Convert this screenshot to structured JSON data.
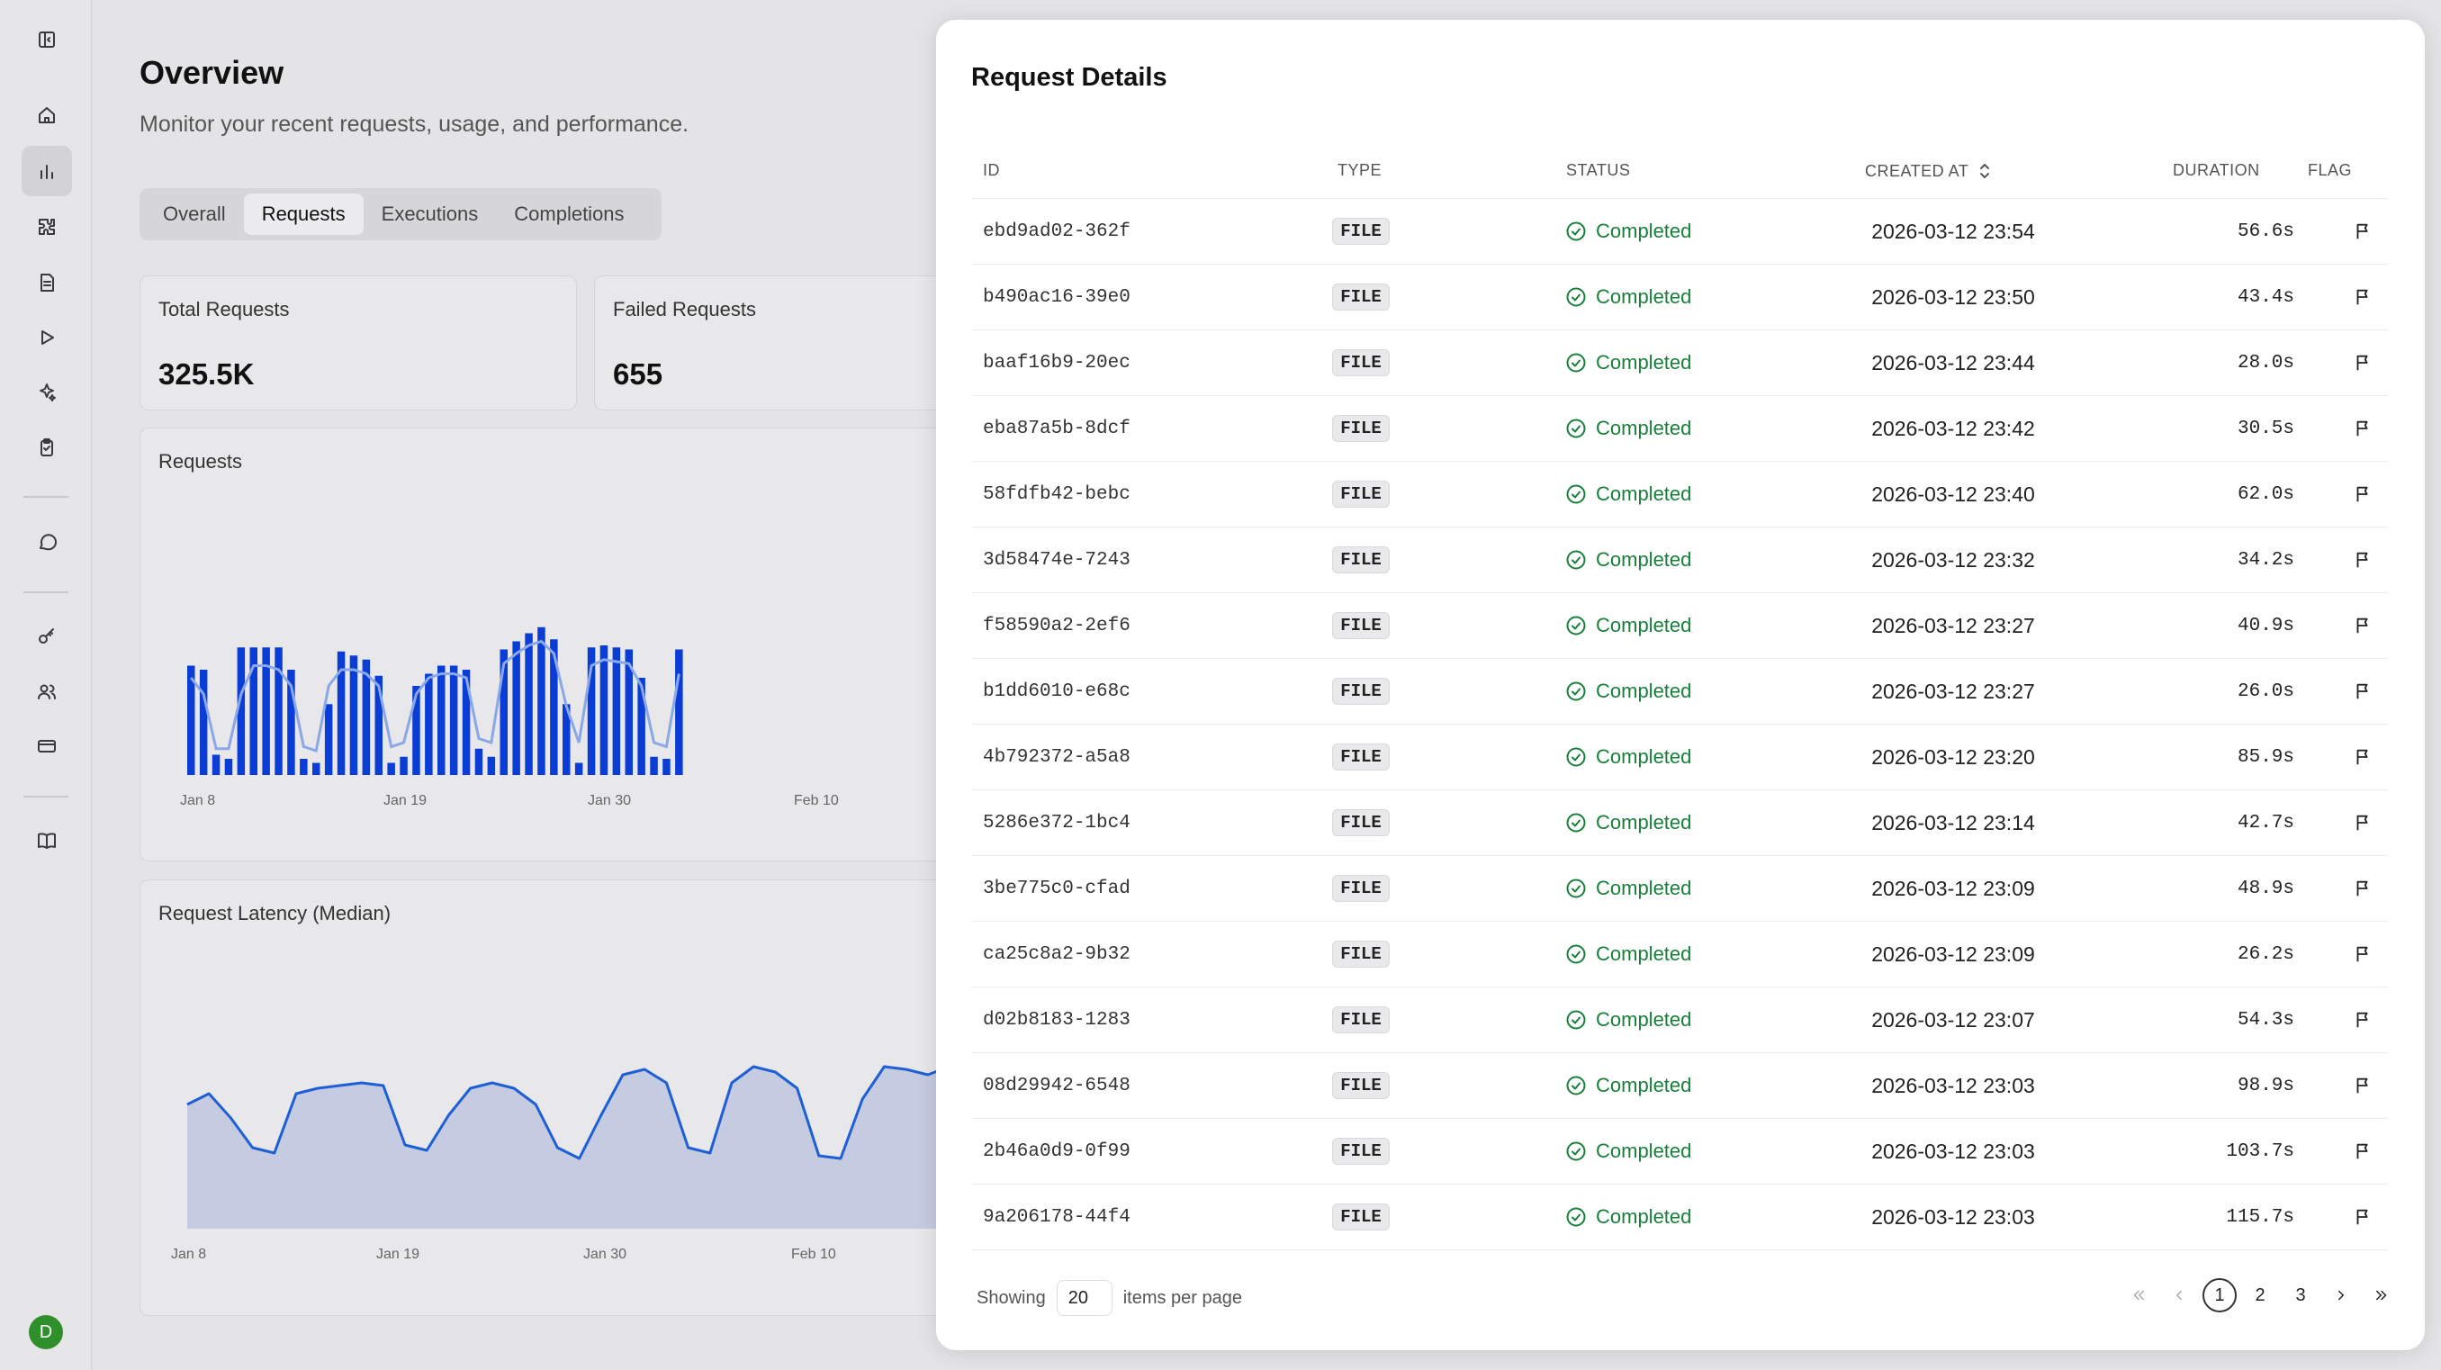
{
  "sidebar": {
    "icons": [
      "sidebar-toggle-icon",
      "home-icon",
      "chart-icon",
      "puzzle-icon",
      "document-icon",
      "play-icon",
      "sparkles-icon",
      "clipboard-icon",
      "chat-icon",
      "key-icon",
      "users-icon",
      "billing-icon",
      "book-icon"
    ],
    "avatar_initial": "D",
    "avatar_color": "#2f8f2a"
  },
  "header": {
    "title": "Overview",
    "subtitle": "Monitor your recent requests, usage, and performance."
  },
  "tabs": [
    {
      "label": "Overall",
      "active": false
    },
    {
      "label": "Requests",
      "active": true
    },
    {
      "label": "Executions",
      "active": false
    },
    {
      "label": "Completions",
      "active": false
    }
  ],
  "stats": [
    {
      "label": "Total Requests",
      "value": "325.5K"
    },
    {
      "label": "Failed Requests",
      "value": "655"
    }
  ],
  "requests_chart": {
    "title": "Requests",
    "x_ticks": [
      "Jan 8",
      "Jan 19",
      "Jan 30",
      "Feb 10"
    ]
  },
  "latency_chart": {
    "title": "Request Latency (Median)",
    "x_ticks": [
      "Jan 8",
      "Jan 19",
      "Jan 30",
      "Feb 10"
    ]
  },
  "chart_data": [
    {
      "type": "bar",
      "title": "Requests",
      "x_ticks": [
        "Jan 8",
        "Jan 19",
        "Jan 30",
        "Feb 10"
      ],
      "values": [
        54,
        52,
        10,
        8,
        63,
        63,
        63,
        63,
        52,
        8,
        6,
        35,
        61,
        59,
        57,
        49,
        6,
        9,
        44,
        50,
        54,
        54,
        52,
        13,
        9,
        62,
        66,
        70,
        73,
        67,
        35,
        6,
        63,
        64,
        63,
        62,
        48,
        9,
        8,
        62
      ],
      "overlay_line": [
        48,
        40,
        13,
        13,
        40,
        54,
        54,
        52,
        44,
        14,
        12,
        44,
        52,
        52,
        50,
        44,
        14,
        16,
        40,
        48,
        50,
        50,
        48,
        18,
        16,
        55,
        60,
        64,
        66,
        60,
        34,
        16,
        54,
        57,
        56,
        55,
        44,
        16,
        14,
        50
      ],
      "color": "#0a3dd6",
      "line_color": "#8aa8e8"
    },
    {
      "type": "area",
      "title": "Request Latency (Median)",
      "x_ticks": [
        "Jan 8",
        "Jan 19",
        "Jan 30",
        "Feb 10"
      ],
      "values": [
        46,
        50,
        41,
        30,
        28,
        50,
        52,
        53,
        54,
        53,
        31,
        29,
        42,
        52,
        54,
        52,
        46,
        30,
        26,
        42,
        57,
        59,
        54,
        30,
        28,
        54,
        60,
        58,
        52,
        27,
        26,
        48,
        60,
        59,
        57,
        60,
        55,
        44,
        36
      ],
      "color": "#1f5fd6",
      "fill": "#c5cbe0"
    }
  ],
  "modal": {
    "title": "Request Details",
    "columns": {
      "id": "ID",
      "type": "TYPE",
      "status": "STATUS",
      "created_at": "CREATED AT",
      "duration": "DURATION",
      "flag": "FLAG"
    },
    "rows": [
      {
        "id": "ebd9ad02-362f",
        "type": "FILE",
        "status": "Completed",
        "created_at": "2026-03-12 23:54",
        "duration": "56.6s"
      },
      {
        "id": "b490ac16-39e0",
        "type": "FILE",
        "status": "Completed",
        "created_at": "2026-03-12 23:50",
        "duration": "43.4s"
      },
      {
        "id": "baaf16b9-20ec",
        "type": "FILE",
        "status": "Completed",
        "created_at": "2026-03-12 23:44",
        "duration": "28.0s"
      },
      {
        "id": "eba87a5b-8dcf",
        "type": "FILE",
        "status": "Completed",
        "created_at": "2026-03-12 23:42",
        "duration": "30.5s"
      },
      {
        "id": "58fdfb42-bebc",
        "type": "FILE",
        "status": "Completed",
        "created_at": "2026-03-12 23:40",
        "duration": "62.0s"
      },
      {
        "id": "3d58474e-7243",
        "type": "FILE",
        "status": "Completed",
        "created_at": "2026-03-12 23:32",
        "duration": "34.2s"
      },
      {
        "id": "f58590a2-2ef6",
        "type": "FILE",
        "status": "Completed",
        "created_at": "2026-03-12 23:27",
        "duration": "40.9s"
      },
      {
        "id": "b1dd6010-e68c",
        "type": "FILE",
        "status": "Completed",
        "created_at": "2026-03-12 23:27",
        "duration": "26.0s"
      },
      {
        "id": "4b792372-a5a8",
        "type": "FILE",
        "status": "Completed",
        "created_at": "2026-03-12 23:20",
        "duration": "85.9s"
      },
      {
        "id": "5286e372-1bc4",
        "type": "FILE",
        "status": "Completed",
        "created_at": "2026-03-12 23:14",
        "duration": "42.7s"
      },
      {
        "id": "3be775c0-cfad",
        "type": "FILE",
        "status": "Completed",
        "created_at": "2026-03-12 23:09",
        "duration": "48.9s"
      },
      {
        "id": "ca25c8a2-9b32",
        "type": "FILE",
        "status": "Completed",
        "created_at": "2026-03-12 23:09",
        "duration": "26.2s"
      },
      {
        "id": "d02b8183-1283",
        "type": "FILE",
        "status": "Completed",
        "created_at": "2026-03-12 23:07",
        "duration": "54.3s"
      },
      {
        "id": "08d29942-6548",
        "type": "FILE",
        "status": "Completed",
        "created_at": "2026-03-12 23:03",
        "duration": "98.9s"
      },
      {
        "id": "2b46a0d9-0f99",
        "type": "FILE",
        "status": "Completed",
        "created_at": "2026-03-12 23:03",
        "duration": "103.7s"
      },
      {
        "id": "9a206178-44f4",
        "type": "FILE",
        "status": "Completed",
        "created_at": "2026-03-12 23:03",
        "duration": "115.7s"
      }
    ],
    "footer": {
      "showing_label": "Showing",
      "per_page": "20",
      "per_page_suffix": "items per page"
    },
    "pagination": {
      "pages": [
        "1",
        "2",
        "3"
      ],
      "current": "1"
    },
    "status_color": "#18803a"
  }
}
